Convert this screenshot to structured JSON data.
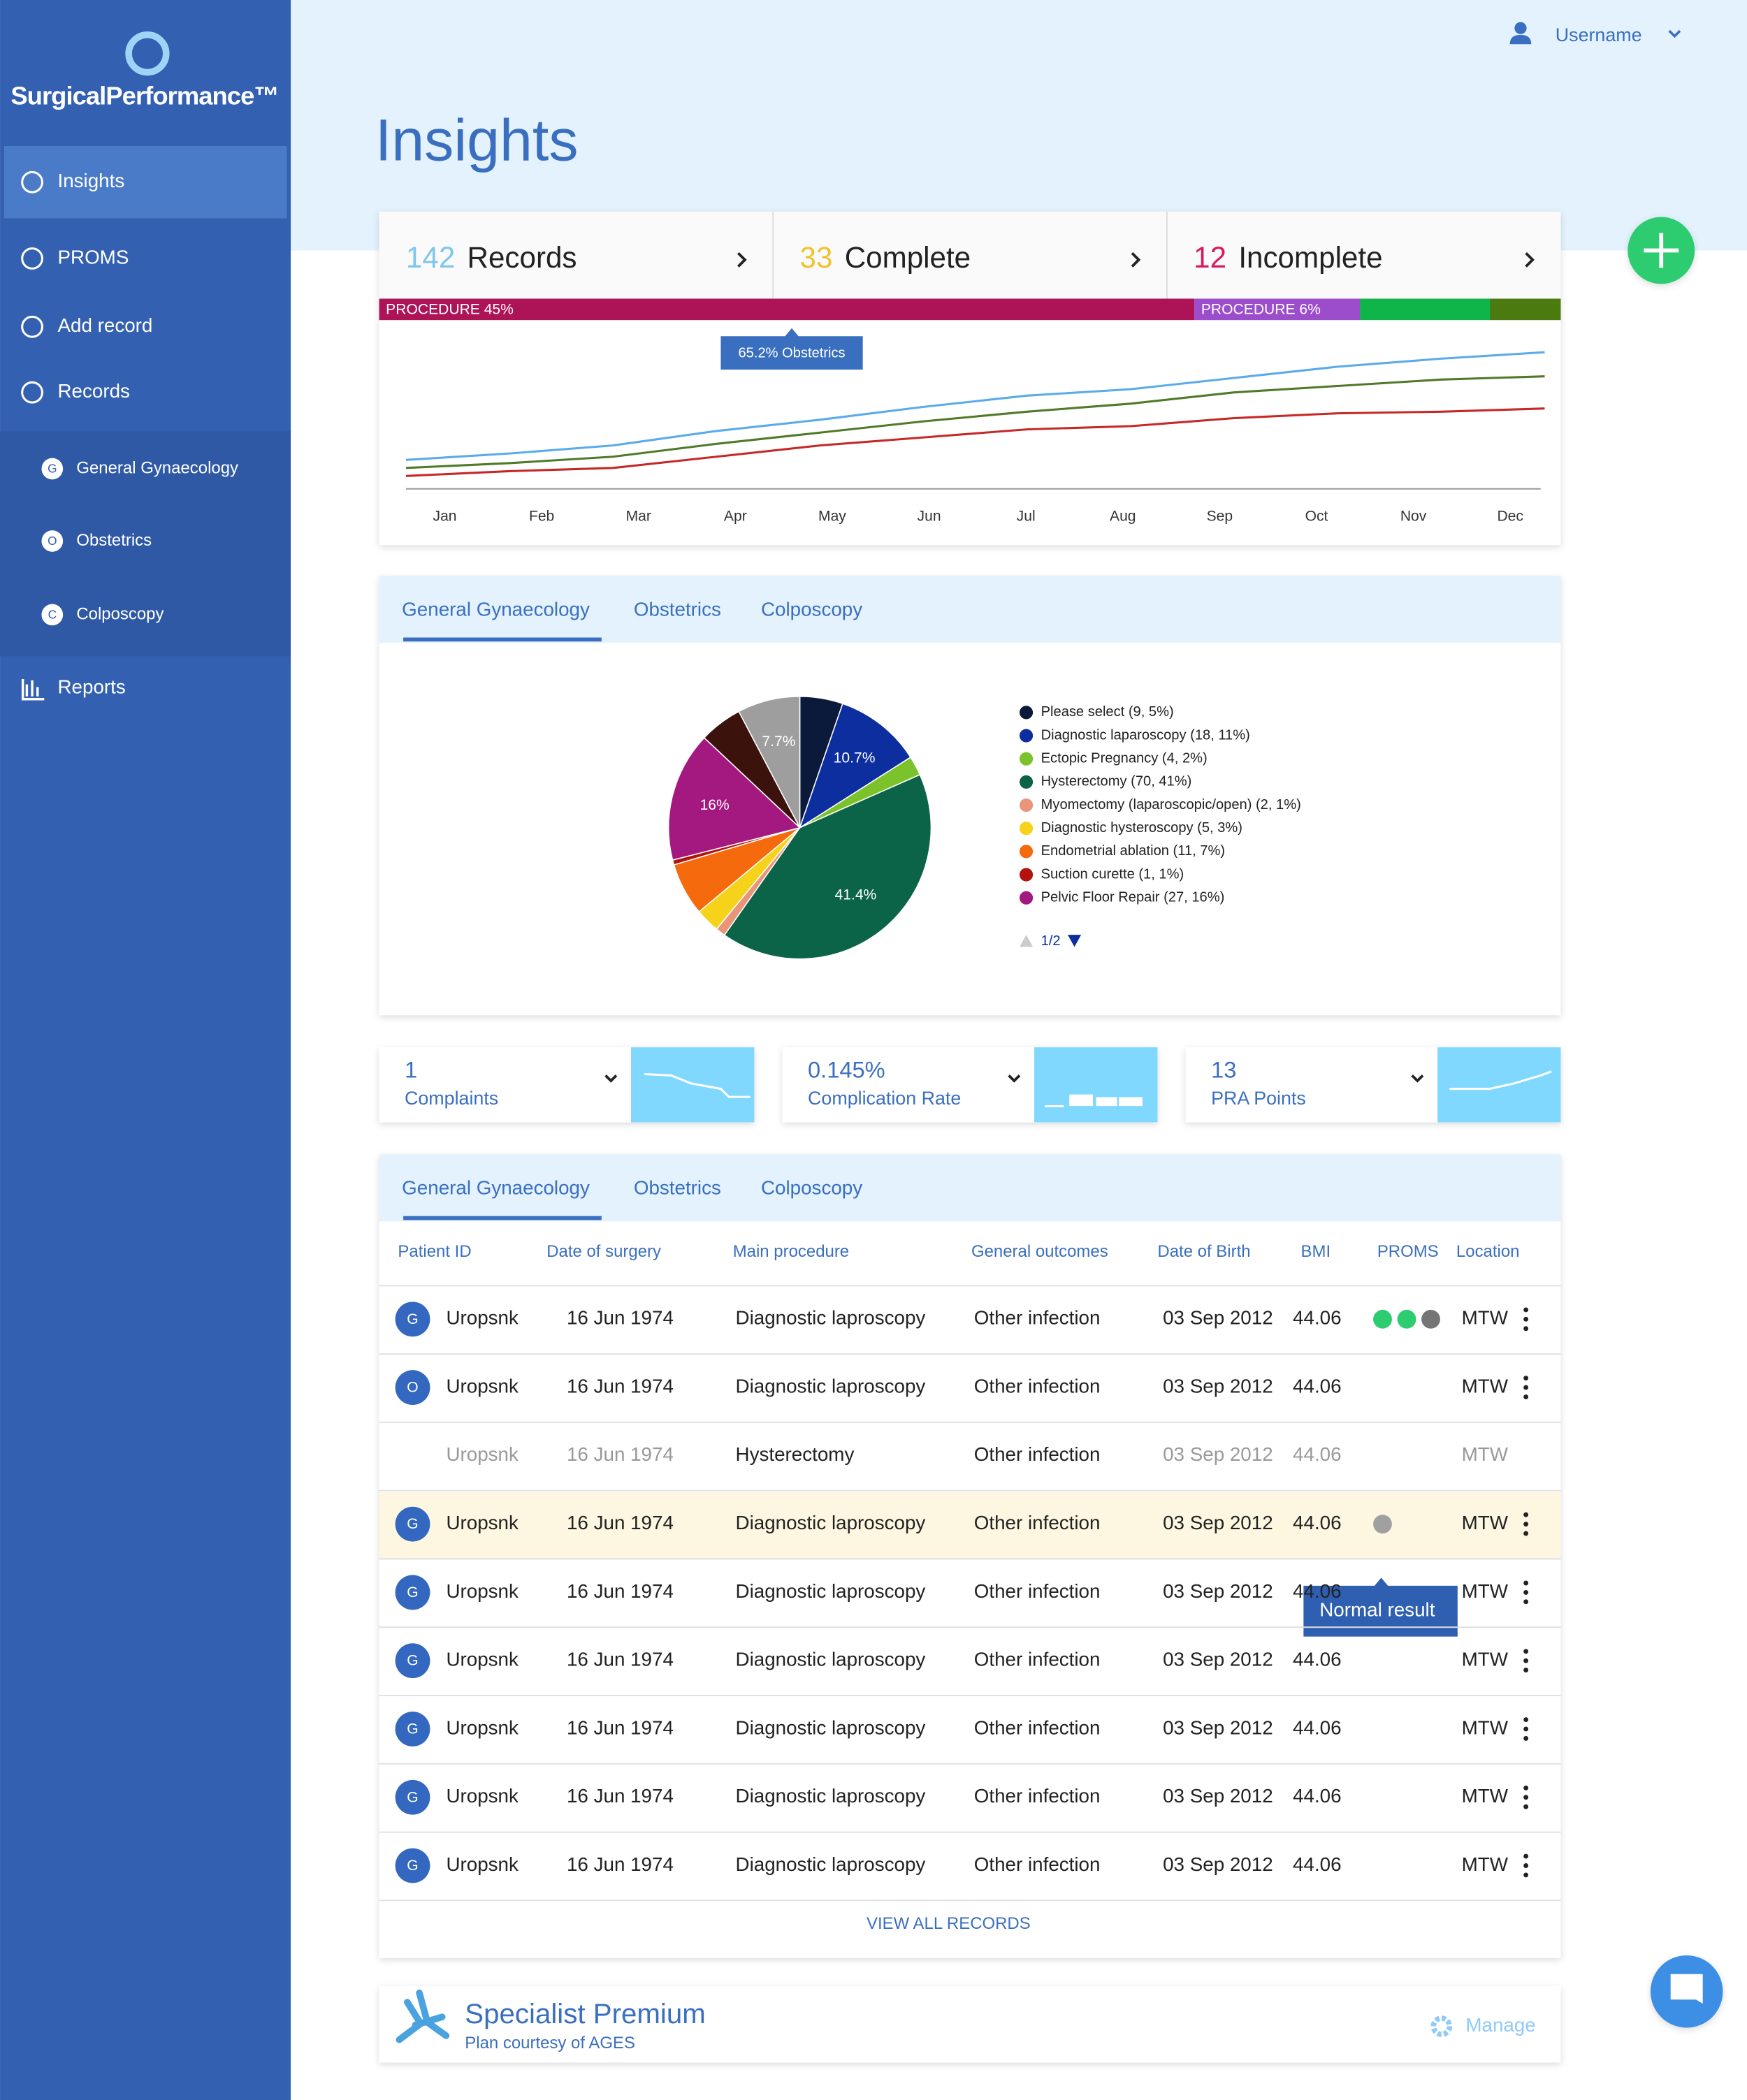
{
  "sidebar": {
    "brand": "SurgicalPerformance™",
    "nav": [
      "Insights",
      "PROMS",
      "Add record",
      "Records"
    ],
    "sub": [
      {
        "letter": "G",
        "label": "General Gynaecology"
      },
      {
        "letter": "O",
        "label": "Obstetrics"
      },
      {
        "letter": "C",
        "label": "Colposcopy"
      }
    ],
    "last": "Reports"
  },
  "header": {
    "user": "Username",
    "title": "Insights"
  },
  "summary": [
    {
      "count": 142,
      "label": "Records",
      "color": "#7fc6ee"
    },
    {
      "count": 33,
      "label": "Complete",
      "color": "#f2c12e"
    },
    {
      "count": 12,
      "label": "Incomplete",
      "color": "#d81b60"
    }
  ],
  "progress": [
    {
      "share": 69,
      "color": "#ad1457",
      "label": "PROCEDURE 45%"
    },
    {
      "share": 14,
      "color": "#9c4dcc",
      "label": "PROCEDURE 6%"
    },
    {
      "share": 11,
      "color": "#10b54a"
    },
    {
      "share": 6,
      "color": "#4a7a10"
    }
  ],
  "chart_data": [
    {
      "type": "line",
      "categories": [
        "Jan",
        "Feb",
        "Mar",
        "Apr",
        "May",
        "Jun",
        "Jul",
        "Aug",
        "Sep",
        "Oct",
        "Nov",
        "Dec"
      ],
      "ylim": [
        0,
        100
      ],
      "annotation": "65.2% Obstetrics",
      "series": [
        {
          "color": "#5aabec",
          "values": [
            18,
            22,
            27,
            36,
            43,
            51,
            58,
            62,
            69,
            76,
            81,
            85
          ]
        },
        {
          "color": "#4f7a28",
          "values": [
            13,
            16,
            20,
            28,
            35,
            42,
            48,
            53,
            60,
            64,
            68,
            70
          ]
        },
        {
          "color": "#c62828",
          "values": [
            8,
            11,
            13,
            20,
            27,
            32,
            37,
            39,
            44,
            47,
            48,
            50
          ]
        }
      ]
    },
    {
      "type": "pie",
      "tabs": [
        "General Gynaecology",
        "Obstetrics",
        "Colposcopy"
      ],
      "categories": [
        "Please select (9, 5%)",
        "Diagnostic laparoscopy (18, 11%)",
        "Ectopic Pregnancy (4, 2%)",
        "Hysterectomy (70, 41%)",
        "Myomectomy (laparoscopic/open) (2, 1%)",
        "Diagnostic hysteroscopy (5, 3%)",
        "Endometrial ablation (11, 7%)",
        "Suction curette (1, 1%)",
        "Pelvic Floor Repair (27, 16%)",
        null,
        null
      ],
      "values": [
        5.3,
        10.7,
        2.4,
        41.4,
        1.2,
        3.0,
        6.5,
        0.6,
        16,
        5.3,
        7.7
      ],
      "value_labels": [
        null,
        "10.7%",
        null,
        "41.4%",
        null,
        null,
        null,
        null,
        "16%",
        null,
        "7.7%"
      ],
      "colors": [
        "#0b1a3a",
        "#0d2e9e",
        "#7cc22a",
        "#0b6447",
        "#e8957a",
        "#f6d21a",
        "#f46a0c",
        "#b3120f",
        "#a3197f",
        "#3c120c",
        "#9e9e9e"
      ],
      "legend_page": "1/2"
    }
  ],
  "metrics": [
    {
      "value": "1",
      "label": "Complaints"
    },
    {
      "value": "0.145%",
      "label": "Complication Rate"
    },
    {
      "value": "13",
      "label": "PRA Points"
    }
  ],
  "table": {
    "tabs": [
      "General Gynaecology",
      "Obstetrics",
      "Colposcopy"
    ],
    "columns": [
      "Patient ID",
      "Date of surgery",
      "Main procedure",
      "General outcomes",
      "Date of Birth",
      "BMI",
      "PROMS",
      "Location"
    ],
    "rows": [
      {
        "cells": [
          "G",
          "Uropsnk",
          "16 Jun 1974",
          "Diagnostic laproscopy",
          "Other infection",
          "03 Sep 2012",
          "44.06",
          "MTW"
        ],
        "proms": [
          "#2ecc71",
          "#2ecc71",
          "#757575"
        ]
      },
      {
        "cells": [
          "O",
          "Uropsnk",
          "16 Jun 1974",
          "Diagnostic laproscopy",
          "Other infection",
          "03 Sep 2012",
          "44.06",
          "MTW"
        ]
      },
      {
        "cells": [
          null,
          "Uropsnk",
          "16 Jun 1974",
          "Hysterectomy",
          "Other infection",
          "03 Sep 2012",
          "44.06",
          "MTW"
        ],
        "muted": true
      },
      {
        "cells": [
          "G",
          "Uropsnk",
          "16 Jun 1974",
          "Diagnostic laproscopy",
          "Other infection",
          "03 Sep 2012",
          "44.06",
          "MTW"
        ],
        "proms": [
          "#a0a0a0"
        ],
        "highlighted": true,
        "tooltip": "Normal result"
      },
      {
        "cells": [
          "G",
          "Uropsnk",
          "16 Jun 1974",
          "Diagnostic laproscopy",
          "Other infection",
          "03 Sep 2012",
          "44.06",
          "MTW"
        ]
      },
      {
        "cells": [
          "G",
          "Uropsnk",
          "16 Jun 1974",
          "Diagnostic laproscopy",
          "Other infection",
          "03 Sep 2012",
          "44.06",
          "MTW"
        ]
      },
      {
        "cells": [
          "G",
          "Uropsnk",
          "16 Jun 1974",
          "Diagnostic laproscopy",
          "Other infection",
          "03 Sep 2012",
          "44.06",
          "MTW"
        ]
      },
      {
        "cells": [
          "G",
          "Uropsnk",
          "16 Jun 1974",
          "Diagnostic laproscopy",
          "Other infection",
          "03 Sep 2012",
          "44.06",
          "MTW"
        ]
      },
      {
        "cells": [
          "G",
          "Uropsnk",
          "16 Jun 1974",
          "Diagnostic laproscopy",
          "Other infection",
          "03 Sep 2012",
          "44.06",
          "MTW"
        ]
      }
    ],
    "footer": "VIEW ALL RECORDS"
  },
  "plan": {
    "title": "Specialist Premium",
    "subtitle": "Plan courtesy of AGES",
    "action": "Manage"
  }
}
